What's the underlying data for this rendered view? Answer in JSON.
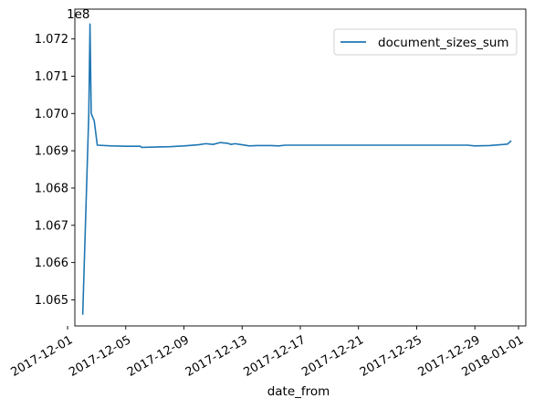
{
  "chart_data": {
    "type": "line",
    "xlabel": "date_from",
    "ylabel": "",
    "y_offset_label": "1e8",
    "xlim": [
      "2017-12-01T12:00",
      "2018-01-01T12:00"
    ],
    "ylim": [
      106.43,
      107.28
    ],
    "grid": false,
    "legend_position": "top-right",
    "x_ticks": [
      {
        "value": "2017-12-01",
        "label": "2017-12-01"
      },
      {
        "value": "2017-12-05",
        "label": "2017-12-05"
      },
      {
        "value": "2017-12-09",
        "label": "2017-12-09"
      },
      {
        "value": "2017-12-13",
        "label": "2017-12-13"
      },
      {
        "value": "2017-12-17",
        "label": "2017-12-17"
      },
      {
        "value": "2017-12-21",
        "label": "2017-12-21"
      },
      {
        "value": "2017-12-25",
        "label": "2017-12-25"
      },
      {
        "value": "2017-12-29",
        "label": "2017-12-29"
      },
      {
        "value": "2018-01-01",
        "label": "2018-01-01"
      }
    ],
    "y_ticks": [
      {
        "value": 106.5,
        "label": "1.065"
      },
      {
        "value": 106.6,
        "label": "1.066"
      },
      {
        "value": 106.7,
        "label": "1.067"
      },
      {
        "value": 106.8,
        "label": "1.068"
      },
      {
        "value": 106.9,
        "label": "1.069"
      },
      {
        "value": 107.0,
        "label": "1.070"
      },
      {
        "value": 107.1,
        "label": "1.071"
      },
      {
        "value": 107.2,
        "label": "1.072"
      }
    ],
    "series": [
      {
        "name": "document_sizes_sum",
        "color": "#1f77b4",
        "points": [
          {
            "x": "2017-12-02T01:00",
            "y": 106.46
          },
          {
            "x": "2017-12-02T11:00",
            "y": 107.0
          },
          {
            "x": "2017-12-02T13:00",
            "y": 107.24
          },
          {
            "x": "2017-12-02T15:00",
            "y": 107.0
          },
          {
            "x": "2017-12-02T20:00",
            "y": 106.98
          },
          {
            "x": "2017-12-03T01:00",
            "y": 106.915
          },
          {
            "x": "2017-12-04T00:00",
            "y": 106.913
          },
          {
            "x": "2017-12-05T00:00",
            "y": 106.912
          },
          {
            "x": "2017-12-06T00:00",
            "y": 106.912
          },
          {
            "x": "2017-12-06T02:00",
            "y": 106.909
          },
          {
            "x": "2017-12-07T00:00",
            "y": 106.91
          },
          {
            "x": "2017-12-08T00:00",
            "y": 106.911
          },
          {
            "x": "2017-12-09T00:00",
            "y": 106.913
          },
          {
            "x": "2017-12-10T00:00",
            "y": 106.916
          },
          {
            "x": "2017-12-10T12:00",
            "y": 106.919
          },
          {
            "x": "2017-12-11T00:00",
            "y": 106.917
          },
          {
            "x": "2017-12-11T12:00",
            "y": 106.922
          },
          {
            "x": "2017-12-12T00:00",
            "y": 106.92
          },
          {
            "x": "2017-12-12T06:00",
            "y": 106.917
          },
          {
            "x": "2017-12-12T12:00",
            "y": 106.919
          },
          {
            "x": "2017-12-13T00:00",
            "y": 106.916
          },
          {
            "x": "2017-12-13T12:00",
            "y": 106.913
          },
          {
            "x": "2017-12-14T00:00",
            "y": 106.914
          },
          {
            "x": "2017-12-15T00:00",
            "y": 106.914
          },
          {
            "x": "2017-12-15T12:00",
            "y": 106.913
          },
          {
            "x": "2017-12-16T00:00",
            "y": 106.915
          },
          {
            "x": "2017-12-20T00:00",
            "y": 106.915
          },
          {
            "x": "2017-12-25T00:00",
            "y": 106.915
          },
          {
            "x": "2017-12-28T12:00",
            "y": 106.915
          },
          {
            "x": "2017-12-29T00:00",
            "y": 106.913
          },
          {
            "x": "2017-12-30T00:00",
            "y": 106.914
          },
          {
            "x": "2017-12-31T00:00",
            "y": 106.917
          },
          {
            "x": "2017-12-31T06:00",
            "y": 106.918
          },
          {
            "x": "2017-12-31T12:00",
            "y": 106.927
          }
        ]
      }
    ]
  }
}
